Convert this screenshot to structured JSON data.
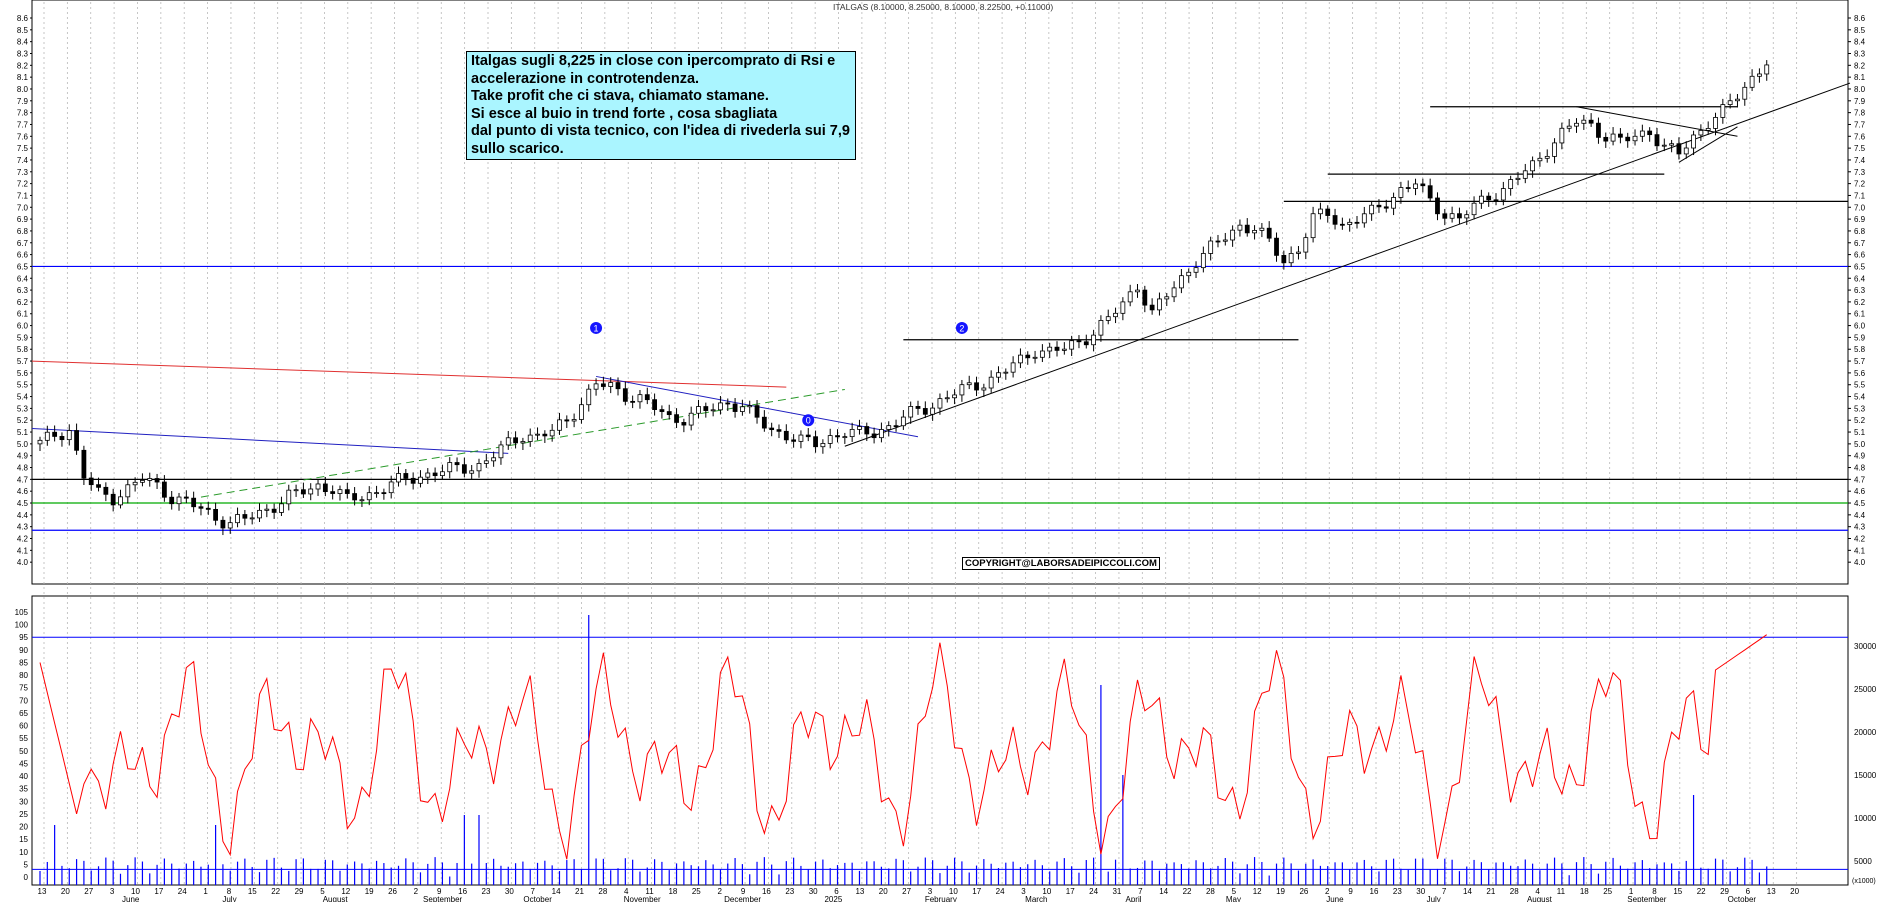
{
  "chart_data": [
    {
      "type": "candlestick",
      "title": "ITALGAS (8.10000, 8.25000, 8.10000, 8.22500, +0.11000)",
      "ylim": [
        3.9,
        8.6
      ],
      "y_ticks": [
        4.0,
        4.1,
        4.2,
        4.3,
        4.4,
        4.5,
        4.6,
        4.7,
        4.8,
        4.9,
        5.0,
        5.1,
        5.2,
        5.3,
        5.4,
        5.5,
        5.6,
        5.7,
        5.8,
        5.9,
        6.0,
        6.1,
        6.2,
        6.3,
        6.4,
        6.5,
        6.6,
        6.7,
        6.8,
        6.9,
        7.0,
        7.1,
        7.2,
        7.3,
        7.4,
        7.5,
        7.6,
        7.7,
        7.8,
        7.9,
        8.0,
        8.1,
        8.2,
        8.3,
        8.4,
        8.5,
        8.6
      ],
      "x_ticks": [
        "13",
        "20",
        "27",
        "3",
        "10",
        "17",
        "24",
        "1",
        "8",
        "15",
        "22",
        "29",
        "5",
        "12",
        "19",
        "26",
        "2",
        "9",
        "16",
        "23",
        "30",
        "7",
        "14",
        "21",
        "28",
        "4",
        "11",
        "18",
        "25",
        "2",
        "9",
        "16",
        "23",
        "30",
        "6",
        "13",
        "20",
        "27",
        "3",
        "10",
        "17",
        "24",
        "3",
        "10",
        "17",
        "24",
        "31",
        "7",
        "14",
        "22",
        "28",
        "5",
        "12",
        "19",
        "26",
        "2",
        "9",
        "16",
        "23",
        "30",
        "7",
        "14",
        "21",
        "28",
        "4",
        "11",
        "18",
        "25",
        "1",
        "8",
        "15",
        "22",
        "29",
        "6",
        "13",
        "20"
      ],
      "months": [
        "June",
        "July",
        "August",
        "September",
        "October",
        "November",
        "December",
        "2025",
        "February",
        "March",
        "April",
        "May",
        "June",
        "July",
        "August",
        "September",
        "October"
      ],
      "horizontal_levels": [
        {
          "value": 6.5,
          "color": "#0000ff"
        },
        {
          "value": 4.7,
          "color": "#000000"
        },
        {
          "value": 4.5,
          "color": "#00aa00"
        },
        {
          "value": 4.27,
          "color": "#0000ff"
        },
        {
          "value": 7.05,
          "color": "#000000"
        },
        {
          "value": 7.28,
          "color": "#000000"
        },
        {
          "value": 7.85,
          "color": "#000000"
        },
        {
          "value": 5.88,
          "color": "#000000"
        }
      ],
      "price_path": [
        [
          0,
          5.0
        ],
        [
          2,
          5.08
        ],
        [
          4,
          5.12
        ],
        [
          6,
          4.72
        ],
        [
          8,
          4.58
        ],
        [
          10,
          4.55
        ],
        [
          12,
          4.62
        ],
        [
          14,
          4.7
        ],
        [
          16,
          4.65
        ],
        [
          18,
          4.55
        ],
        [
          20,
          4.5
        ],
        [
          22,
          4.45
        ],
        [
          24,
          4.38
        ],
        [
          26,
          4.33
        ],
        [
          28,
          4.36
        ],
        [
          30,
          4.42
        ],
        [
          32,
          4.48
        ],
        [
          34,
          4.55
        ],
        [
          36,
          4.6
        ],
        [
          38,
          4.65
        ],
        [
          40,
          4.62
        ],
        [
          42,
          4.52
        ],
        [
          44,
          4.56
        ],
        [
          46,
          4.6
        ],
        [
          48,
          4.66
        ],
        [
          50,
          4.7
        ],
        [
          52,
          4.73
        ],
        [
          54,
          4.76
        ],
        [
          56,
          4.78
        ],
        [
          58,
          4.8
        ],
        [
          60,
          4.82
        ],
        [
          62,
          4.9
        ],
        [
          64,
          5.0
        ],
        [
          66,
          5.08
        ],
        [
          68,
          5.06
        ],
        [
          70,
          5.1
        ],
        [
          72,
          5.2
        ],
        [
          74,
          5.35
        ],
        [
          76,
          5.5
        ],
        [
          78,
          5.48
        ],
        [
          80,
          5.42
        ],
        [
          82,
          5.38
        ],
        [
          84,
          5.3
        ],
        [
          86,
          5.22
        ],
        [
          88,
          5.22
        ],
        [
          90,
          5.26
        ],
        [
          92,
          5.3
        ],
        [
          94,
          5.35
        ],
        [
          96,
          5.32
        ],
        [
          98,
          5.2
        ],
        [
          100,
          5.12
        ],
        [
          102,
          5.08
        ],
        [
          104,
          5.02
        ],
        [
          106,
          5.0
        ],
        [
          108,
          5.06
        ],
        [
          110,
          5.1
        ],
        [
          112,
          5.08
        ],
        [
          114,
          5.1
        ],
        [
          116,
          5.15
        ],
        [
          118,
          5.22
        ],
        [
          120,
          5.28
        ],
        [
          122,
          5.33
        ],
        [
          124,
          5.4
        ],
        [
          126,
          5.45
        ],
        [
          128,
          5.5
        ],
        [
          130,
          5.55
        ],
        [
          132,
          5.62
        ],
        [
          134,
          5.7
        ],
        [
          136,
          5.8
        ],
        [
          138,
          5.78
        ],
        [
          140,
          5.8
        ],
        [
          142,
          5.86
        ],
        [
          144,
          5.95
        ],
        [
          146,
          6.05
        ],
        [
          148,
          6.18
        ],
        [
          150,
          6.35
        ],
        [
          152,
          6.1
        ],
        [
          154,
          6.25
        ],
        [
          156,
          6.4
        ],
        [
          158,
          6.55
        ],
        [
          160,
          6.65
        ],
        [
          162,
          6.75
        ],
        [
          164,
          6.85
        ],
        [
          166,
          6.82
        ],
        [
          168,
          6.7
        ],
        [
          170,
          6.55
        ],
        [
          172,
          6.65
        ],
        [
          174,
          6.9
        ],
        [
          176,
          6.95
        ],
        [
          178,
          6.85
        ],
        [
          180,
          6.9
        ],
        [
          182,
          6.95
        ],
        [
          184,
          7.05
        ],
        [
          186,
          7.15
        ],
        [
          188,
          7.2
        ],
        [
          190,
          7.05
        ],
        [
          192,
          6.95
        ],
        [
          194,
          6.9
        ],
        [
          196,
          7.0
        ],
        [
          198,
          7.1
        ],
        [
          200,
          7.15
        ],
        [
          202,
          7.25
        ],
        [
          204,
          7.35
        ],
        [
          206,
          7.5
        ],
        [
          208,
          7.62
        ],
        [
          210,
          7.72
        ],
        [
          212,
          7.7
        ],
        [
          214,
          7.6
        ],
        [
          216,
          7.55
        ],
        [
          218,
          7.6
        ],
        [
          220,
          7.65
        ],
        [
          222,
          7.5
        ],
        [
          224,
          7.45
        ],
        [
          226,
          7.6
        ],
        [
          228,
          7.72
        ],
        [
          230,
          7.8
        ],
        [
          232,
          7.95
        ],
        [
          234,
          8.1
        ],
        [
          236,
          8.225
        ]
      ]
    },
    {
      "type": "line+bar",
      "series": [
        {
          "type": "line",
          "color": "#ff0000"
        },
        {
          "type": "bar",
          "color": "#0000ff"
        }
      ],
      "left_ticks": [
        0,
        5,
        10,
        15,
        20,
        25,
        30,
        35,
        40,
        45,
        50,
        55,
        60,
        65,
        70,
        75,
        80,
        85,
        90,
        95,
        100,
        105
      ],
      "right_ticks": [
        "5000",
        "10000",
        "15000",
        "20000",
        "25000",
        "30000"
      ],
      "right_axis_label": "(x1000)",
      "reference_lines": [
        95,
        3
      ]
    }
  ],
  "annotation_box": {
    "lines": [
      "Italgas sugli 8,225 in close con ipercomprato di Rsi e",
      "accelerazione in controtendenza.",
      "Take profit che ci stava, chiamato stamane.",
      "Si esce al buio in trend forte , cosa sbagliata",
      "dal punto di vista tecnico, con l'idea di rivederla sui 7,9",
      "sullo scarico."
    ]
  },
  "copyright": "COPYRIGHT@LABORSADEIPICCOLI.COM",
  "wave_labels": [
    "1",
    "0",
    "2"
  ],
  "colors": {
    "line": "#ff0000",
    "volume": "#0000ff",
    "note_bg": "#aaf5ff"
  }
}
